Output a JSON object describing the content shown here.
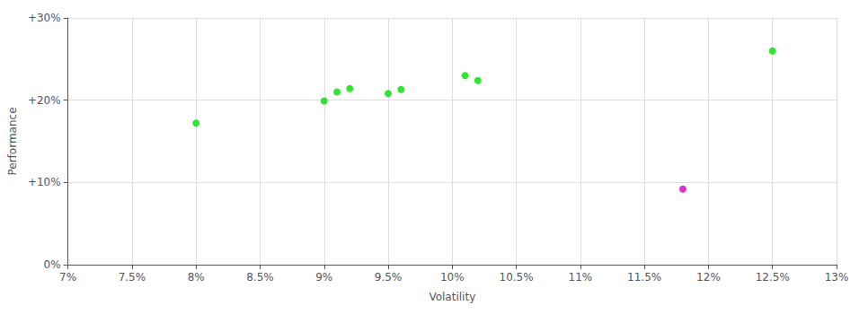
{
  "chart_data": {
    "type": "scatter",
    "xlabel": "Volatility",
    "ylabel": "Performance",
    "marker": "circle",
    "grid": true,
    "series": [
      {
        "color": "#00dd00",
        "x": [
          0.08,
          0.09,
          0.091,
          0.092,
          0.095,
          0.096,
          0.101,
          0.102,
          0.125
        ],
        "y": [
          0.172,
          0.199,
          0.21,
          0.214,
          0.208,
          0.213,
          0.23,
          0.224,
          0.26
        ]
      },
      {
        "color": "#cc00cc",
        "x": [
          0.118
        ],
        "y": [
          0.092
        ]
      }
    ],
    "xlim": [
      0.07,
      0.13
    ],
    "ylim": [
      0.0,
      0.3
    ],
    "xticks": [
      {
        "value": 0.07,
        "label": "7%"
      },
      {
        "value": 0.075,
        "label": "7.5%"
      },
      {
        "value": 0.08,
        "label": "8%"
      },
      {
        "value": 0.085,
        "label": "8.5%"
      },
      {
        "value": 0.09,
        "label": "9%"
      },
      {
        "value": 0.095,
        "label": "9.5%"
      },
      {
        "value": 0.1,
        "label": "10%"
      },
      {
        "value": 0.105,
        "label": "10.5%"
      },
      {
        "value": 0.11,
        "label": "11%"
      },
      {
        "value": 0.115,
        "label": "11.5%"
      },
      {
        "value": 0.12,
        "label": "12%"
      },
      {
        "value": 0.125,
        "label": "12.5%"
      },
      {
        "value": 0.13,
        "label": "13%"
      }
    ],
    "yticks": [
      {
        "value": 0.0,
        "label": "0%"
      },
      {
        "value": 0.1,
        "label": "+10%"
      },
      {
        "value": 0.2,
        "label": "+20%"
      },
      {
        "value": 0.3,
        "label": "+30%"
      }
    ]
  }
}
